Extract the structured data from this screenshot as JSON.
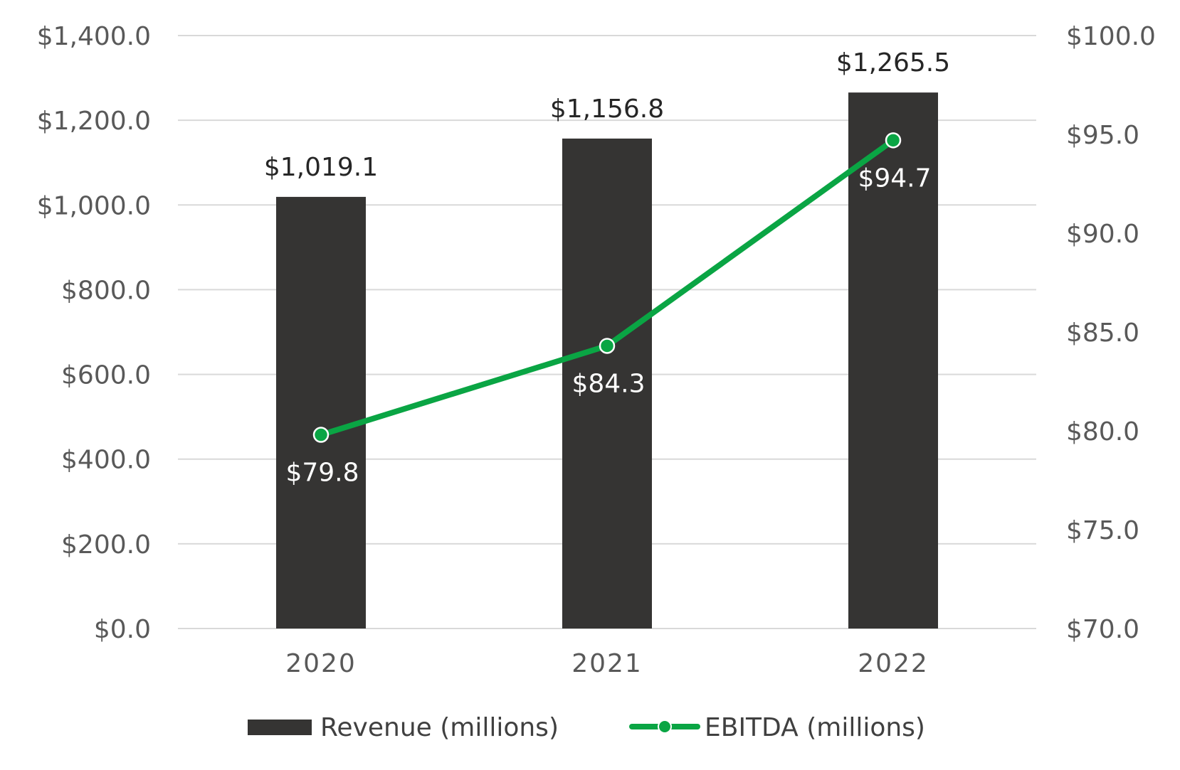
{
  "chart_data": {
    "type": "bar",
    "categories": [
      "2020",
      "2021",
      "2022"
    ],
    "series": [
      {
        "name": "Revenue (millions)",
        "type": "bar",
        "axis": "left",
        "values": [
          1019.1,
          1156.8,
          1265.5
        ],
        "labels": [
          "$1,019.1",
          "$1,156.8",
          "$1,265.5"
        ],
        "color": "#353433"
      },
      {
        "name": "EBITDA (millions)",
        "type": "line",
        "axis": "right",
        "values": [
          79.8,
          84.3,
          94.7
        ],
        "labels": [
          "$79.8",
          "$84.3",
          "$94.7"
        ],
        "color": "#0aa544"
      }
    ],
    "y_left": {
      "min": 0,
      "max": 1400,
      "ticks": [
        "$0.0",
        "$200.0",
        "$400.0",
        "$600.0",
        "$800.0",
        "$1,000.0",
        "$1,200.0",
        "$1,400.0"
      ]
    },
    "y_right": {
      "min": 70,
      "max": 100,
      "ticks": [
        "$70.0",
        "$75.0",
        "$80.0",
        "$85.0",
        "$90.0",
        "$95.0",
        "$100.0"
      ]
    },
    "grid": true,
    "grid_color": "#d9d9d9",
    "legend_position": "bottom"
  }
}
